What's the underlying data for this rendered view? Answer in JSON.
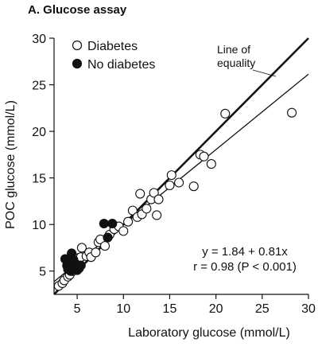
{
  "chart_data": {
    "type": "scatter",
    "title": "A. Glucose assay",
    "xlabel": "Laboratory glucose (mmol/L)",
    "ylabel": "POC glucose (mmol/L)",
    "xlim": [
      2.5,
      30
    ],
    "ylim": [
      2.5,
      30
    ],
    "xticks": [
      5,
      10,
      15,
      20,
      25,
      30
    ],
    "yticks": [
      5,
      10,
      15,
      20,
      25,
      30
    ],
    "legend_position": "top-left",
    "series": [
      {
        "name": "Diabetes",
        "marker": "open-circle",
        "points": [
          [
            3.0,
            3.4
          ],
          [
            3.4,
            3.7
          ],
          [
            3.6,
            4.0
          ],
          [
            4.0,
            4.4
          ],
          [
            4.2,
            4.6
          ],
          [
            4.5,
            5.0
          ],
          [
            4.8,
            5.3
          ],
          [
            5.0,
            6.0
          ],
          [
            5.1,
            6.4
          ],
          [
            5.4,
            6.5
          ],
          [
            5.5,
            7.5
          ],
          [
            6.0,
            6.6
          ],
          [
            6.3,
            7.0
          ],
          [
            6.5,
            6.5
          ],
          [
            7.0,
            7.0
          ],
          [
            7.3,
            8.1
          ],
          [
            7.5,
            8.4
          ],
          [
            8.0,
            7.7
          ],
          [
            8.5,
            8.9
          ],
          [
            9.0,
            9.5
          ],
          [
            9.5,
            9.8
          ],
          [
            10.0,
            9.3
          ],
          [
            10.5,
            10.3
          ],
          [
            11.0,
            11.5
          ],
          [
            11.5,
            10.8
          ],
          [
            11.8,
            13.3
          ],
          [
            12.0,
            11.1
          ],
          [
            12.5,
            11.7
          ],
          [
            13.0,
            12.7
          ],
          [
            13.3,
            13.4
          ],
          [
            13.6,
            11.0
          ],
          [
            13.8,
            12.7
          ],
          [
            15.0,
            14.2
          ],
          [
            15.2,
            15.3
          ],
          [
            16.0,
            14.5
          ],
          [
            17.6,
            14.1
          ],
          [
            18.3,
            17.5
          ],
          [
            18.7,
            17.3
          ],
          [
            19.5,
            16.5
          ],
          [
            21.0,
            21.9
          ],
          [
            28.2,
            22.0
          ]
        ]
      },
      {
        "name": "No diabetes",
        "marker": "filled-circle",
        "points": [
          [
            3.7,
            6.3
          ],
          [
            3.9,
            5.6
          ],
          [
            4.0,
            5.2
          ],
          [
            4.2,
            5.8
          ],
          [
            4.3,
            5.0
          ],
          [
            4.4,
            6.9
          ],
          [
            4.5,
            5.4
          ],
          [
            4.6,
            6.2
          ],
          [
            4.7,
            5.7
          ],
          [
            4.9,
            5.5
          ],
          [
            5.0,
            5.1
          ],
          [
            5.2,
            5.3
          ],
          [
            5.4,
            5.6
          ],
          [
            7.9,
            10.1
          ],
          [
            8.3,
            8.6
          ],
          [
            8.8,
            10.1
          ]
        ]
      }
    ],
    "lines": [
      {
        "name": "Line of equality",
        "intercept": 0,
        "slope": 1,
        "style": "thick"
      },
      {
        "name": "y = 1.84 + 0.81x",
        "intercept": 1.84,
        "slope": 0.81,
        "style": "thin"
      }
    ],
    "annotations": {
      "equality_label_line1": "Line of",
      "equality_label_line2": "equality",
      "regression_equation": "y = 1.84 + 0.81x",
      "correlation": "r = 0.98 (P < 0.001)"
    },
    "colors": {
      "ink": "#111111",
      "marker_fill_open": "#ffffff"
    }
  }
}
